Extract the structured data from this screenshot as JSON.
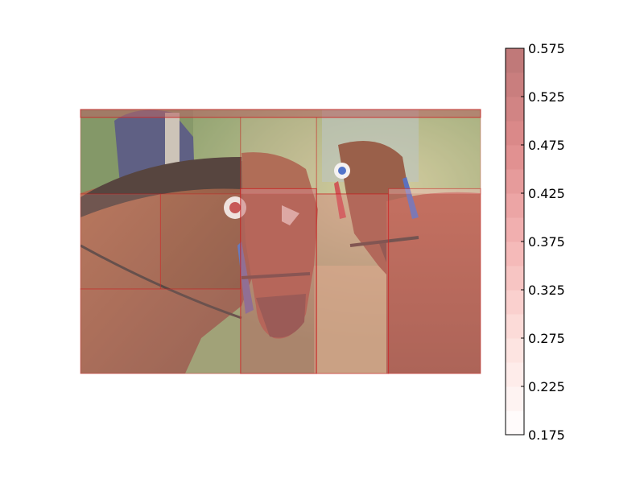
{
  "chart_data": {
    "type": "heatmap",
    "title": "",
    "xlabel": "",
    "ylabel": "",
    "background_image": "horses-photo",
    "overlay_cmap": "Reds",
    "colorbar": {
      "vmin": 0.175,
      "vmax": 0.575,
      "ticks": [
        "0.575",
        "0.525",
        "0.475",
        "0.425",
        "0.375",
        "0.325",
        "0.275",
        "0.225",
        "0.175"
      ],
      "levels": 16
    },
    "regions": [
      {
        "x0": 0.0,
        "y0": 0.0,
        "x1": 1.0,
        "y1": 0.03,
        "value": 0.56
      },
      {
        "x0": 0.0,
        "y0": 0.03,
        "x1": 0.4,
        "y1": 0.32,
        "value": 0.2
      },
      {
        "x0": 0.4,
        "y0": 0.03,
        "x1": 0.59,
        "y1": 0.32,
        "value": 0.28
      },
      {
        "x0": 0.59,
        "y0": 0.03,
        "x1": 1.0,
        "y1": 0.32,
        "value": 0.22
      },
      {
        "x0": 0.0,
        "y0": 0.32,
        "x1": 0.2,
        "y1": 0.68,
        "value": 0.3
      },
      {
        "x0": 0.2,
        "y0": 0.32,
        "x1": 0.4,
        "y1": 0.68,
        "value": 0.25
      },
      {
        "x0": 0.4,
        "y0": 0.3,
        "x1": 0.59,
        "y1": 1.0,
        "value": 0.52
      },
      {
        "x0": 0.59,
        "y0": 0.32,
        "x1": 0.77,
        "y1": 1.0,
        "value": 0.44
      },
      {
        "x0": 0.77,
        "y0": 0.3,
        "x1": 1.0,
        "y1": 1.0,
        "value": 0.36
      },
      {
        "x0": 0.0,
        "y0": 0.68,
        "x1": 0.4,
        "y1": 1.0,
        "value": 0.32
      }
    ]
  }
}
